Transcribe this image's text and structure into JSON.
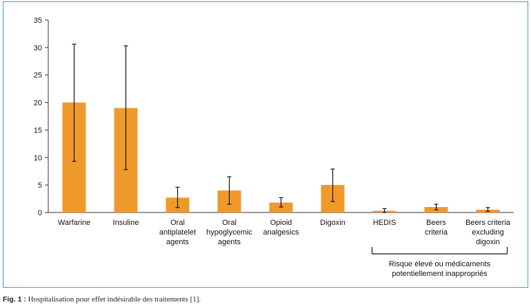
{
  "caption": {
    "label": "Fig. 1 :",
    "text": "Hospitalisation pour effet indésirable des traitements [1]."
  },
  "colors": {
    "bar": "#f0992b",
    "frame": "#3aa3c4",
    "axis": "#333333"
  },
  "chart_data": {
    "type": "bar",
    "categories": [
      "Warfarine",
      "Insuline",
      "Oral antiplatelet agents",
      "Oral hypoglycemic agents",
      "Opioid analgesics",
      "Digoxin",
      "HEDIS",
      "Beers criteria",
      "Beers criteria excluding digoxin"
    ],
    "category_lines": [
      [
        "Warfarine"
      ],
      [
        "Insuline"
      ],
      [
        "Oral",
        "antiplatelet",
        "agents"
      ],
      [
        "Oral",
        "hypoglycemic",
        "agents"
      ],
      [
        "Opioid",
        "analgesics"
      ],
      [
        "Digoxin"
      ],
      [
        "HEDIS"
      ],
      [
        "Beers",
        "criteria"
      ],
      [
        "Beers criteria",
        "excluding",
        "digoxin"
      ]
    ],
    "values": [
      20,
      19,
      2.7,
      4.0,
      1.8,
      5.0,
      0.3,
      1.0,
      0.5
    ],
    "error_low": [
      9.3,
      7.8,
      0.9,
      1.5,
      1.0,
      2.0,
      0.0,
      0.5,
      0.2
    ],
    "error_high": [
      30.6,
      30.3,
      4.6,
      6.5,
      2.7,
      7.9,
      0.7,
      1.5,
      0.9
    ],
    "ylim": [
      0,
      35
    ],
    "yticks": [
      0,
      5,
      10,
      15,
      20,
      25,
      30,
      35
    ],
    "group_label": {
      "lines": [
        "Risque élevé ou médicaments",
        "potentiellement inappropriés"
      ],
      "from_category": 6,
      "to_category": 8
    },
    "title": "",
    "xlabel": "",
    "ylabel": ""
  }
}
